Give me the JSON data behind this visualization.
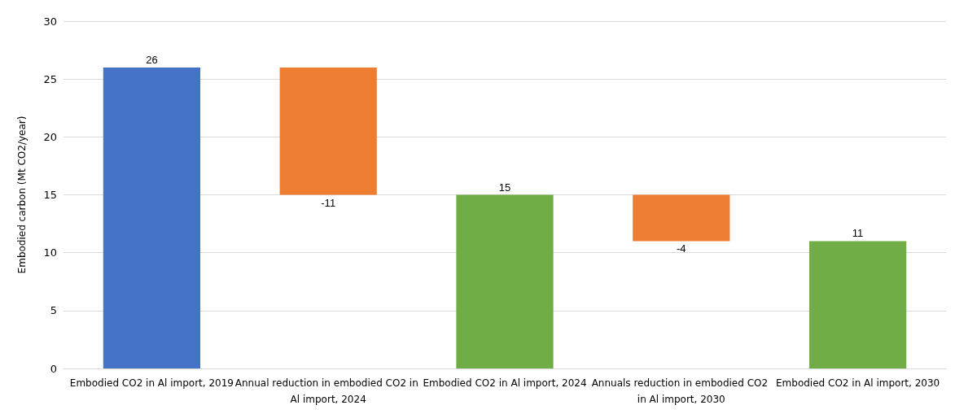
{
  "chart_data": {
    "type": "bar",
    "ylabel": "Embodied carbon (Mt CO2/year)",
    "categories": [
      "Embodied CO2 in Al import, 2019",
      "Annual reduction in embodied CO2 in Al import, 2024",
      "Embodied CO2 in Al import, 2024",
      "Annuals reduction in embodied CO2 in Al import, 2030",
      "Embodied CO2 in Al import, 2030"
    ],
    "values": [
      26,
      -11,
      15,
      -4,
      11
    ],
    "base": [
      0,
      26,
      0,
      15,
      0
    ],
    "colors": [
      "#4472c4",
      "#ed7d31",
      "#70ad47",
      "#ed7d31",
      "#70ad47"
    ],
    "ylim": [
      0,
      30
    ],
    "yticks": [
      0,
      5,
      10,
      15,
      20,
      25,
      30
    ],
    "grid": "y",
    "data_labels": true
  }
}
